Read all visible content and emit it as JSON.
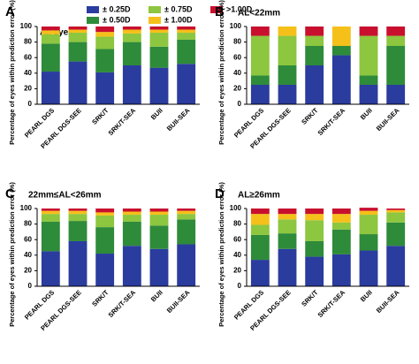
{
  "chart_data": [
    {
      "type": "stacked_bar",
      "panel": "A",
      "title": "All eyes",
      "ylabel": "Percentage of eyes within prediction error (%)",
      "categories": [
        "PEARL DGS",
        "PEARL DGS-SEE",
        "SRK/T",
        "SRK/T-SEA",
        "BUII",
        "BUII-SEA"
      ],
      "series": [
        {
          "name": "± 0.25D",
          "color": "#2b3c9f",
          "values": [
            42,
            55,
            41,
            50,
            47,
            52
          ]
        },
        {
          "name": "± 0.50D",
          "color": "#2e8b3a",
          "values": [
            36,
            25,
            30,
            30,
            27,
            31
          ]
        },
        {
          "name": "± 0.75D",
          "color": "#8dc63f",
          "values": [
            12,
            12,
            16,
            11,
            18,
            9
          ]
        },
        {
          "name": "± 1.00D",
          "color": "#f6c01a",
          "values": [
            5,
            4,
            6,
            5,
            4,
            4
          ]
        },
        {
          "name": ">1.00D",
          "color": "#c8102e",
          "values": [
            5,
            4,
            7,
            4,
            4,
            4
          ]
        }
      ],
      "ylim": [
        0,
        100
      ],
      "yticks": [
        0,
        20,
        40,
        60,
        80,
        100
      ]
    },
    {
      "type": "stacked_bar",
      "panel": "B",
      "title": "AL<22mm",
      "ylabel": "Percentage of eyes within prediction error (%)",
      "categories": [
        "PEARL DGS",
        "PEARL DGS-SEE",
        "SRK/T",
        "SRK/T-SEA",
        "BUII",
        "BUII-SEA"
      ],
      "series": [
        {
          "color": "#2b3c9f",
          "values": [
            25,
            25,
            50,
            63,
            25,
            25
          ]
        },
        {
          "color": "#2e8b3a",
          "values": [
            12,
            25,
            25,
            12,
            12,
            50
          ]
        },
        {
          "color": "#8dc63f",
          "values": [
            51,
            38,
            13,
            0,
            51,
            13
          ]
        },
        {
          "color": "#f6c01a",
          "values": [
            0,
            12,
            0,
            25,
            0,
            0
          ]
        },
        {
          "color": "#c8102e",
          "values": [
            12,
            0,
            12,
            0,
            12,
            12
          ]
        }
      ],
      "ylim": [
        0,
        100
      ],
      "yticks": [
        0,
        20,
        40,
        60,
        80,
        100
      ]
    },
    {
      "type": "stacked_bar",
      "panel": "C",
      "title": "22mm≤AL<26mm",
      "ylabel": "Percentage of eyes within prediction error (%)",
      "categories": [
        "PEARL DGS",
        "PEARL DGS-SEE",
        "SRK/T",
        "SRK/T-SEA",
        "BUII",
        "BUII-SEA"
      ],
      "series": [
        {
          "color": "#2b3c9f",
          "values": [
            45,
            58,
            42,
            52,
            48,
            54
          ]
        },
        {
          "color": "#2e8b3a",
          "values": [
            38,
            26,
            34,
            31,
            30,
            32
          ]
        },
        {
          "color": "#8dc63f",
          "values": [
            10,
            9,
            15,
            9,
            14,
            7
          ]
        },
        {
          "color": "#f6c01a",
          "values": [
            4,
            4,
            4,
            4,
            4,
            4
          ]
        },
        {
          "color": "#c8102e",
          "values": [
            3,
            3,
            5,
            4,
            4,
            3
          ]
        }
      ],
      "ylim": [
        0,
        100
      ],
      "yticks": [
        0,
        20,
        40,
        60,
        80,
        100
      ]
    },
    {
      "type": "stacked_bar",
      "panel": "D",
      "title": "AL≥26mm",
      "ylabel": "Percentage of eyes within prediction error (%)",
      "categories": [
        "PEARL DGS",
        "PEARL DGS-SEE",
        "SRK/T",
        "SRK/T-SEA",
        "BUII",
        "BUII-SEA"
      ],
      "series": [
        {
          "color": "#2b3c9f",
          "values": [
            34,
            48,
            38,
            41,
            46,
            52
          ]
        },
        {
          "color": "#2e8b3a",
          "values": [
            32,
            20,
            20,
            32,
            21,
            30
          ]
        },
        {
          "color": "#8dc63f",
          "values": [
            13,
            18,
            27,
            9,
            25,
            13
          ]
        },
        {
          "color": "#f6c01a",
          "values": [
            14,
            7,
            8,
            11,
            5,
            3
          ]
        },
        {
          "color": "#c8102e",
          "values": [
            7,
            7,
            7,
            7,
            4,
            2
          ]
        }
      ],
      "ylim": [
        0,
        100
      ],
      "yticks": [
        0,
        20,
        40,
        60,
        80,
        100
      ]
    }
  ]
}
